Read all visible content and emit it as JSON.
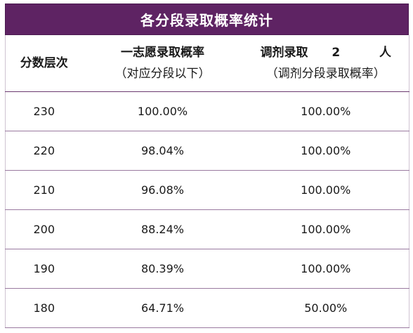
{
  "title": "各分段录取概率统计",
  "headers": {
    "col1": "分数层次",
    "col2_line1": "一志愿录取概率",
    "col2_line2": "（对应分段以下）",
    "col3_label": "调剂录取",
    "col3_count": "2",
    "col3_unit": "人",
    "col3_line2": "（调剂分段录取概率）"
  },
  "rows": [
    {
      "score": "230",
      "first": "100.00%",
      "adjust": "100.00%"
    },
    {
      "score": "220",
      "first": "98.04%",
      "adjust": "100.00%"
    },
    {
      "score": "210",
      "first": "96.08%",
      "adjust": "100.00%"
    },
    {
      "score": "200",
      "first": "88.24%",
      "adjust": "100.00%"
    },
    {
      "score": "190",
      "first": "80.39%",
      "adjust": "100.00%"
    },
    {
      "score": "180",
      "first": "64.71%",
      "adjust": "50.00%"
    }
  ],
  "colors": {
    "header_bg": "#5e2363",
    "row_border": "#9a7aa0"
  }
}
